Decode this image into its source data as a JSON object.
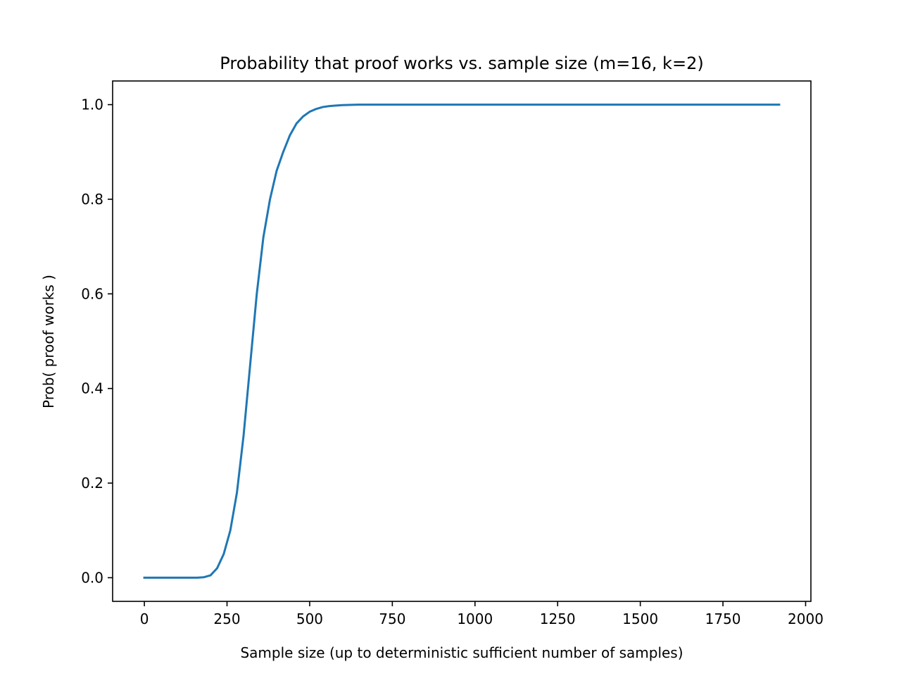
{
  "chart_data": {
    "type": "line",
    "title": "Probability that proof works vs. sample size (m=16, k=2)",
    "xlabel": "Sample size (up to deterministic sufficient number of samples)",
    "ylabel": "Prob( proof works )",
    "xlim": [
      -96,
      2016
    ],
    "ylim": [
      -0.05,
      1.05
    ],
    "x_ticks": [
      0,
      250,
      500,
      750,
      1000,
      1250,
      1500,
      1750,
      2000
    ],
    "x_tick_labels": [
      "0",
      "250",
      "500",
      "750",
      "1000",
      "1250",
      "1500",
      "1750",
      "2000"
    ],
    "y_ticks": [
      0.0,
      0.2,
      0.4,
      0.6,
      0.8,
      1.0
    ],
    "y_tick_labels": [
      "0.0",
      "0.2",
      "0.4",
      "0.6",
      "0.8",
      "1.0"
    ],
    "grid": false,
    "legend": "none",
    "series": [
      {
        "color": "#1f77b4",
        "x": [
          0,
          20,
          40,
          60,
          80,
          100,
          120,
          140,
          160,
          180,
          200,
          220,
          240,
          260,
          280,
          300,
          320,
          340,
          360,
          380,
          400,
          420,
          440,
          460,
          480,
          500,
          520,
          540,
          560,
          580,
          600,
          650,
          700,
          800,
          1000,
          1200,
          1400,
          1600,
          1800,
          1920
        ],
        "y": [
          0.0,
          0.0,
          0.0,
          0.0,
          0.0,
          0.0,
          0.0,
          0.0,
          0.0,
          0.001,
          0.005,
          0.02,
          0.05,
          0.1,
          0.18,
          0.3,
          0.45,
          0.6,
          0.72,
          0.8,
          0.86,
          0.9,
          0.935,
          0.96,
          0.975,
          0.985,
          0.991,
          0.995,
          0.997,
          0.998,
          0.999,
          1.0,
          1.0,
          1.0,
          1.0,
          1.0,
          1.0,
          1.0,
          1.0,
          1.0
        ]
      }
    ]
  }
}
